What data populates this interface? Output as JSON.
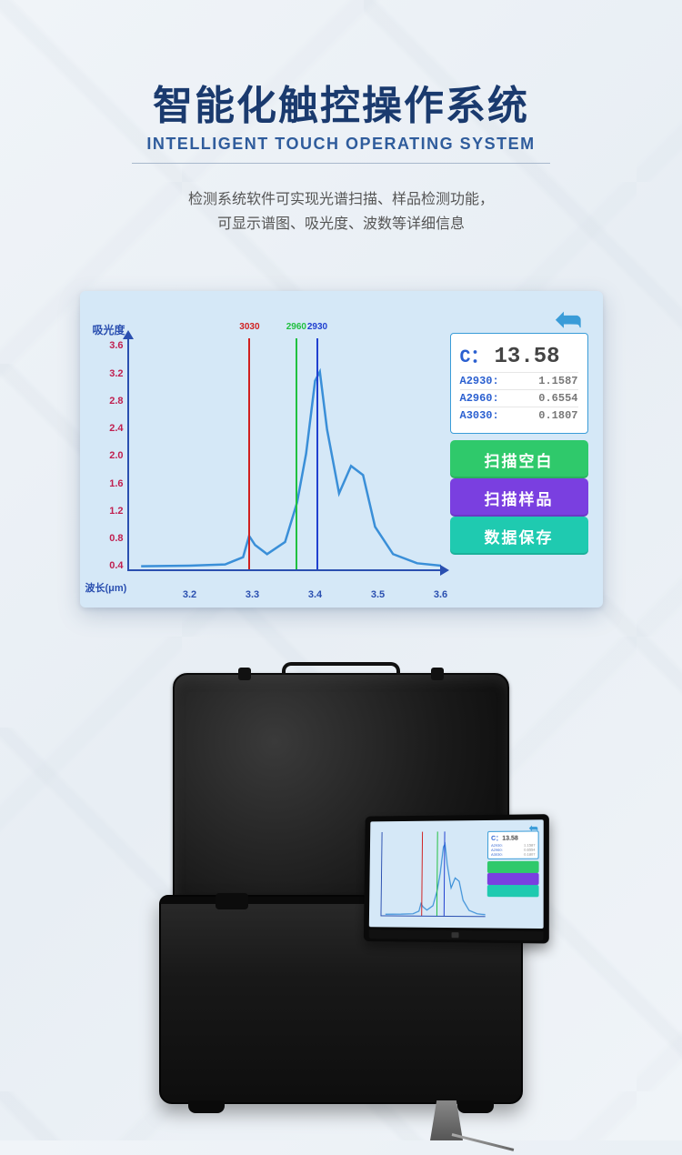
{
  "header": {
    "title_cn": "智能化触控操作系统",
    "title_en": "INTELLIGENT TOUCH OPERATING SYSTEM",
    "desc_line1": "检测系统软件可实现光谱扫描、样品检测功能，",
    "desc_line2": "可显示谱图、吸光度、波数等详细信息"
  },
  "chart": {
    "type": "line",
    "y_label": "吸光度",
    "x_label": "波长(μm)",
    "y_ticks": [
      "0.4",
      "0.8",
      "1.2",
      "1.6",
      "2.0",
      "2.4",
      "2.8",
      "3.2",
      "3.6"
    ],
    "x_ticks": [
      {
        "label": "3.2",
        "pct": 20
      },
      {
        "label": "3.3",
        "pct": 40
      },
      {
        "label": "3.4",
        "pct": 60
      },
      {
        "label": "3.5",
        "pct": 80
      },
      {
        "label": "3.6",
        "pct": 100
      }
    ],
    "xlim": [
      3.1,
      3.62
    ],
    "ylim": [
      0,
      3.8
    ],
    "markers": [
      {
        "label": "3030",
        "x": 3.3,
        "color": "#d02020"
      },
      {
        "label": "2960",
        "x": 3.378,
        "color": "#20c040"
      },
      {
        "label": "2930",
        "x": 3.413,
        "color": "#2040d0"
      }
    ],
    "line_color": "#3a8fd8",
    "line_width": 2.5,
    "points": [
      [
        3.12,
        0.05
      ],
      [
        3.2,
        0.06
      ],
      [
        3.26,
        0.08
      ],
      [
        3.29,
        0.2
      ],
      [
        3.3,
        0.55
      ],
      [
        3.31,
        0.4
      ],
      [
        3.33,
        0.25
      ],
      [
        3.36,
        0.45
      ],
      [
        3.38,
        1.1
      ],
      [
        3.395,
        1.9
      ],
      [
        3.41,
        3.1
      ],
      [
        3.418,
        3.25
      ],
      [
        3.43,
        2.3
      ],
      [
        3.45,
        1.25
      ],
      [
        3.47,
        1.7
      ],
      [
        3.49,
        1.55
      ],
      [
        3.51,
        0.7
      ],
      [
        3.54,
        0.25
      ],
      [
        3.58,
        0.1
      ],
      [
        3.62,
        0.06
      ]
    ],
    "axis_color": "#2a4fb0",
    "tick_color_y": "#c02050",
    "background": "#d5e8f7"
  },
  "readout": {
    "main": {
      "label": "C：",
      "value": "13.58"
    },
    "rows": [
      {
        "label": "A2930:",
        "value": "1.1587"
      },
      {
        "label": "A2960:",
        "value": "0.6554"
      },
      {
        "label": "A3030:",
        "value": "0.1807"
      }
    ]
  },
  "buttons": [
    {
      "label": "扫描空白",
      "color": "#2fc96b"
    },
    {
      "label": "扫描样品",
      "color": "#7a3fe0"
    },
    {
      "label": "数据保存",
      "color": "#1fcab0"
    }
  ],
  "colors": {
    "title": "#1a3a6e",
    "subtitle": "#2f5c9c",
    "screen_bg": "#d5e8f7"
  }
}
